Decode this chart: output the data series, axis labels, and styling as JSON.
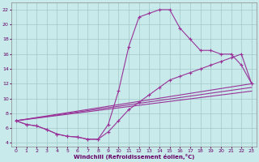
{
  "title": "",
  "xlabel": "Windchill (Refroidissement éolien,°C)",
  "ylabel": "",
  "bg_color": "#c8eaea",
  "grid_color": "#a0c8c8",
  "line_color": "#993399",
  "xlim": [
    -0.5,
    23.5
  ],
  "ylim": [
    3.5,
    23.0
  ],
  "xticks": [
    0,
    1,
    2,
    3,
    4,
    5,
    6,
    7,
    8,
    9,
    10,
    11,
    12,
    13,
    14,
    15,
    16,
    17,
    18,
    19,
    20,
    21,
    22,
    23
  ],
  "yticks": [
    4,
    6,
    8,
    10,
    12,
    14,
    16,
    18,
    20,
    22
  ],
  "curve1_x": [
    0,
    1,
    2,
    3,
    4,
    5,
    6,
    7,
    8,
    9,
    10,
    11,
    12,
    13,
    14,
    15,
    16,
    17,
    18,
    19,
    20,
    21,
    22,
    23
  ],
  "curve1_y": [
    7.0,
    6.5,
    6.3,
    5.8,
    5.2,
    4.9,
    4.8,
    4.5,
    4.5,
    6.5,
    11.0,
    17.0,
    21.0,
    21.5,
    22.0,
    22.0,
    19.5,
    18.0,
    16.5,
    16.5,
    16.0,
    16.0,
    14.5,
    12.0
  ],
  "curve2_x": [
    0,
    1,
    2,
    3,
    4,
    5,
    6,
    7,
    8,
    9,
    10,
    11,
    12,
    13,
    14,
    15,
    16,
    17,
    18,
    19,
    20,
    21,
    22,
    23
  ],
  "curve2_y": [
    7.0,
    6.5,
    6.3,
    5.8,
    5.2,
    4.9,
    4.8,
    4.5,
    4.5,
    5.5,
    7.0,
    8.5,
    9.5,
    10.5,
    11.5,
    12.5,
    13.0,
    13.5,
    14.0,
    14.5,
    15.0,
    15.5,
    16.0,
    12.0
  ],
  "line1_x": [
    0,
    23
  ],
  "line1_y": [
    7.0,
    12.0
  ],
  "line2_x": [
    0,
    23
  ],
  "line2_y": [
    7.0,
    11.5
  ],
  "line3_x": [
    0,
    23
  ],
  "line3_y": [
    7.0,
    11.0
  ]
}
